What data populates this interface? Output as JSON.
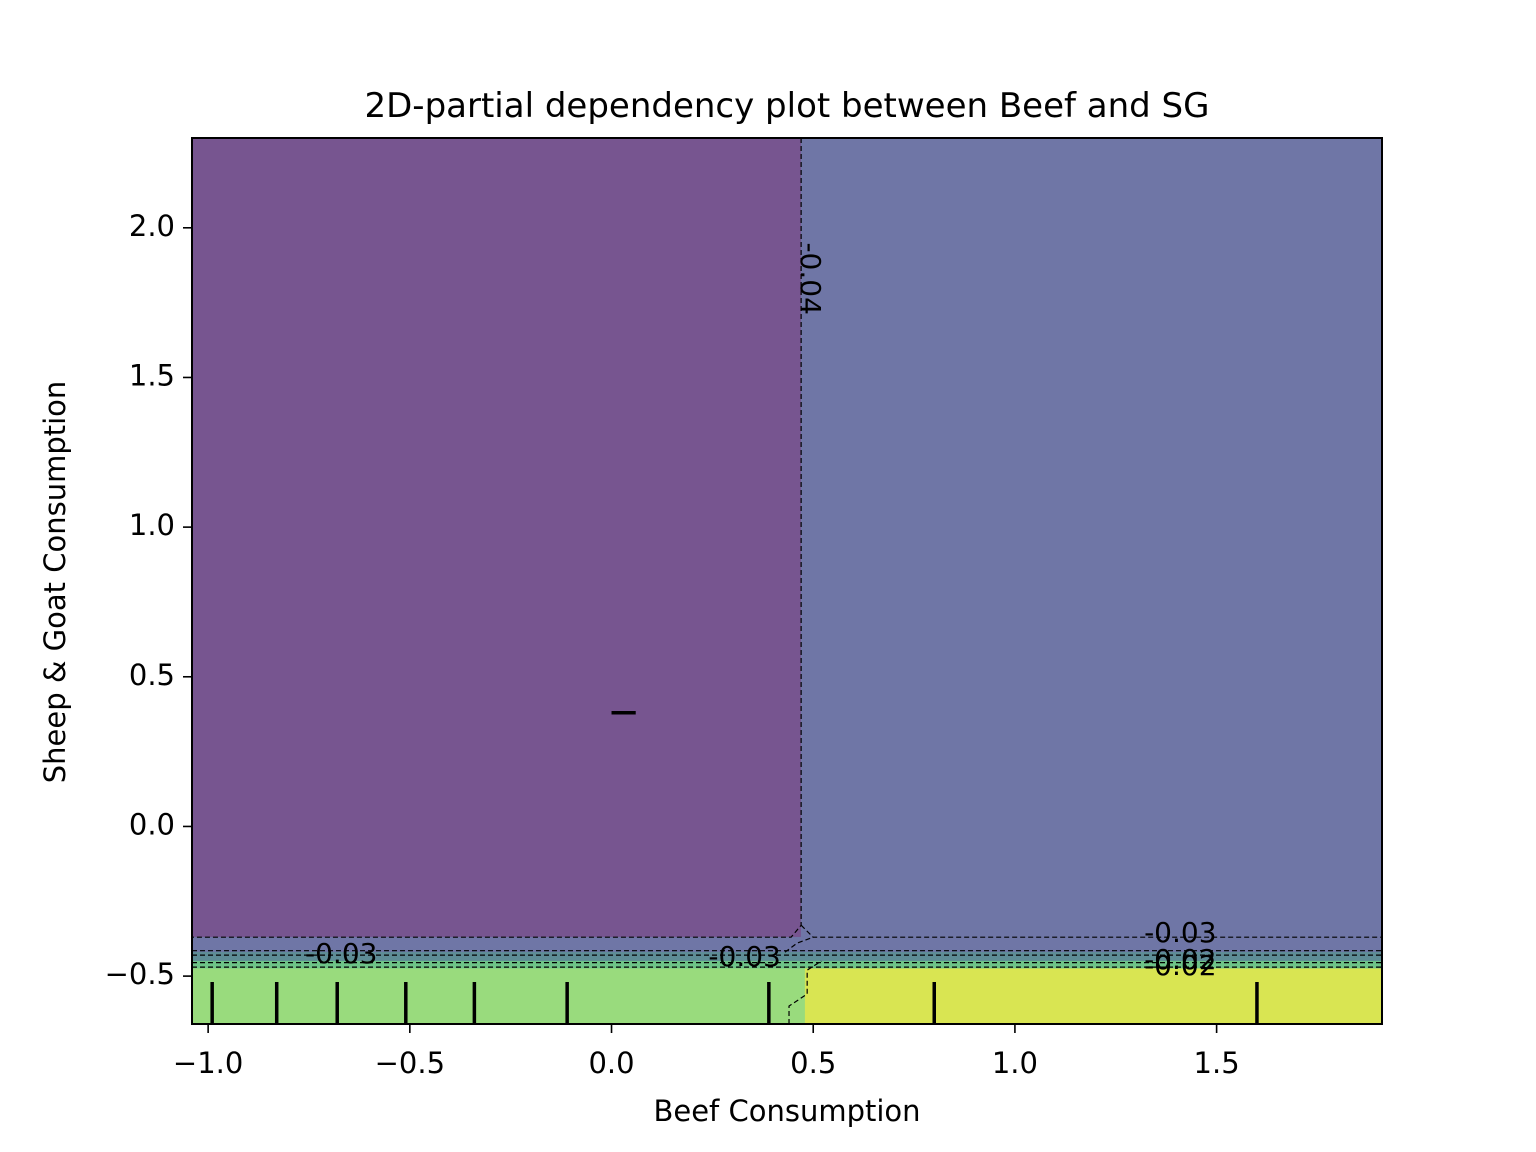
{
  "chart_data": {
    "type": "heatmap",
    "subtype": "contour",
    "title": "2D-partial dependency plot between Beef and SG",
    "xlabel": "Beef Consumption",
    "ylabel": "Sheep & Goat Consumption",
    "xlim": [
      -1.04,
      1.91
    ],
    "ylim": [
      -0.66,
      2.3
    ],
    "xticks": [
      -1.0,
      -0.5,
      0.0,
      0.5,
      1.0,
      1.5
    ],
    "xtick_labels": [
      "−1.0",
      "−0.5",
      "0.0",
      "0.5",
      "1.0",
      "1.5"
    ],
    "yticks": [
      -0.5,
      0.0,
      0.5,
      1.0,
      1.5,
      2.0
    ],
    "ytick_labels": [
      "−0.5",
      "0.0",
      "0.5",
      "1.0",
      "1.5",
      "2.0"
    ],
    "grid": false,
    "colormap": "viridis",
    "regions": [
      {
        "x": [
          -1.04,
          0.47
        ],
        "y": [
          -0.37,
          2.3
        ],
        "value": -0.045,
        "color": "#775590"
      },
      {
        "x": [
          0.47,
          1.91
        ],
        "y": [
          -0.37,
          2.3
        ],
        "value": -0.035,
        "color": "#6f76a6"
      },
      {
        "x": [
          -1.04,
          1.91
        ],
        "y": [
          -0.42,
          -0.37
        ],
        "value": -0.035,
        "color": "#6f76a6"
      },
      {
        "x": [
          -1.04,
          1.91
        ],
        "y": [
          -0.45,
          -0.42
        ],
        "value": -0.028,
        "color": "#5e8c96"
      },
      {
        "x": [
          -1.04,
          1.91
        ],
        "y": [
          -0.475,
          -0.45
        ],
        "value": -0.022,
        "color": "#6ec488"
      },
      {
        "x": [
          -1.04,
          0.48
        ],
        "y": [
          -0.66,
          -0.475
        ],
        "value": -0.015,
        "color": "#99db7d"
      },
      {
        "x": [
          0.48,
          1.91
        ],
        "y": [
          -0.66,
          -0.475
        ],
        "value": -0.01,
        "color": "#d9e552"
      }
    ],
    "contour_levels": [
      {
        "level": -0.04,
        "label": "-0.04",
        "label_at": [
          0.49,
          1.83
        ],
        "label_rotation": 90
      },
      {
        "level": -0.03,
        "label": "-0.03",
        "label_at": [
          -0.67,
          -0.43
        ]
      },
      {
        "level": -0.03,
        "label": "-0.03",
        "label_at": [
          0.33,
          -0.44
        ]
      },
      {
        "level": -0.03,
        "label": "-0.03",
        "label_at": [
          1.41,
          -0.36
        ]
      },
      {
        "level": -0.02,
        "label": "-0.02",
        "label_at": [
          1.41,
          -0.45
        ]
      },
      {
        "level": -0.02,
        "label": "-0.02",
        "label_at": [
          1.41,
          -0.47
        ]
      }
    ],
    "x_deciles": [
      -0.99,
      -0.83,
      -0.68,
      -0.51,
      -0.34,
      -0.11,
      0.39,
      0.8,
      1.6
    ],
    "y_deciles": [
      0.38
    ]
  }
}
